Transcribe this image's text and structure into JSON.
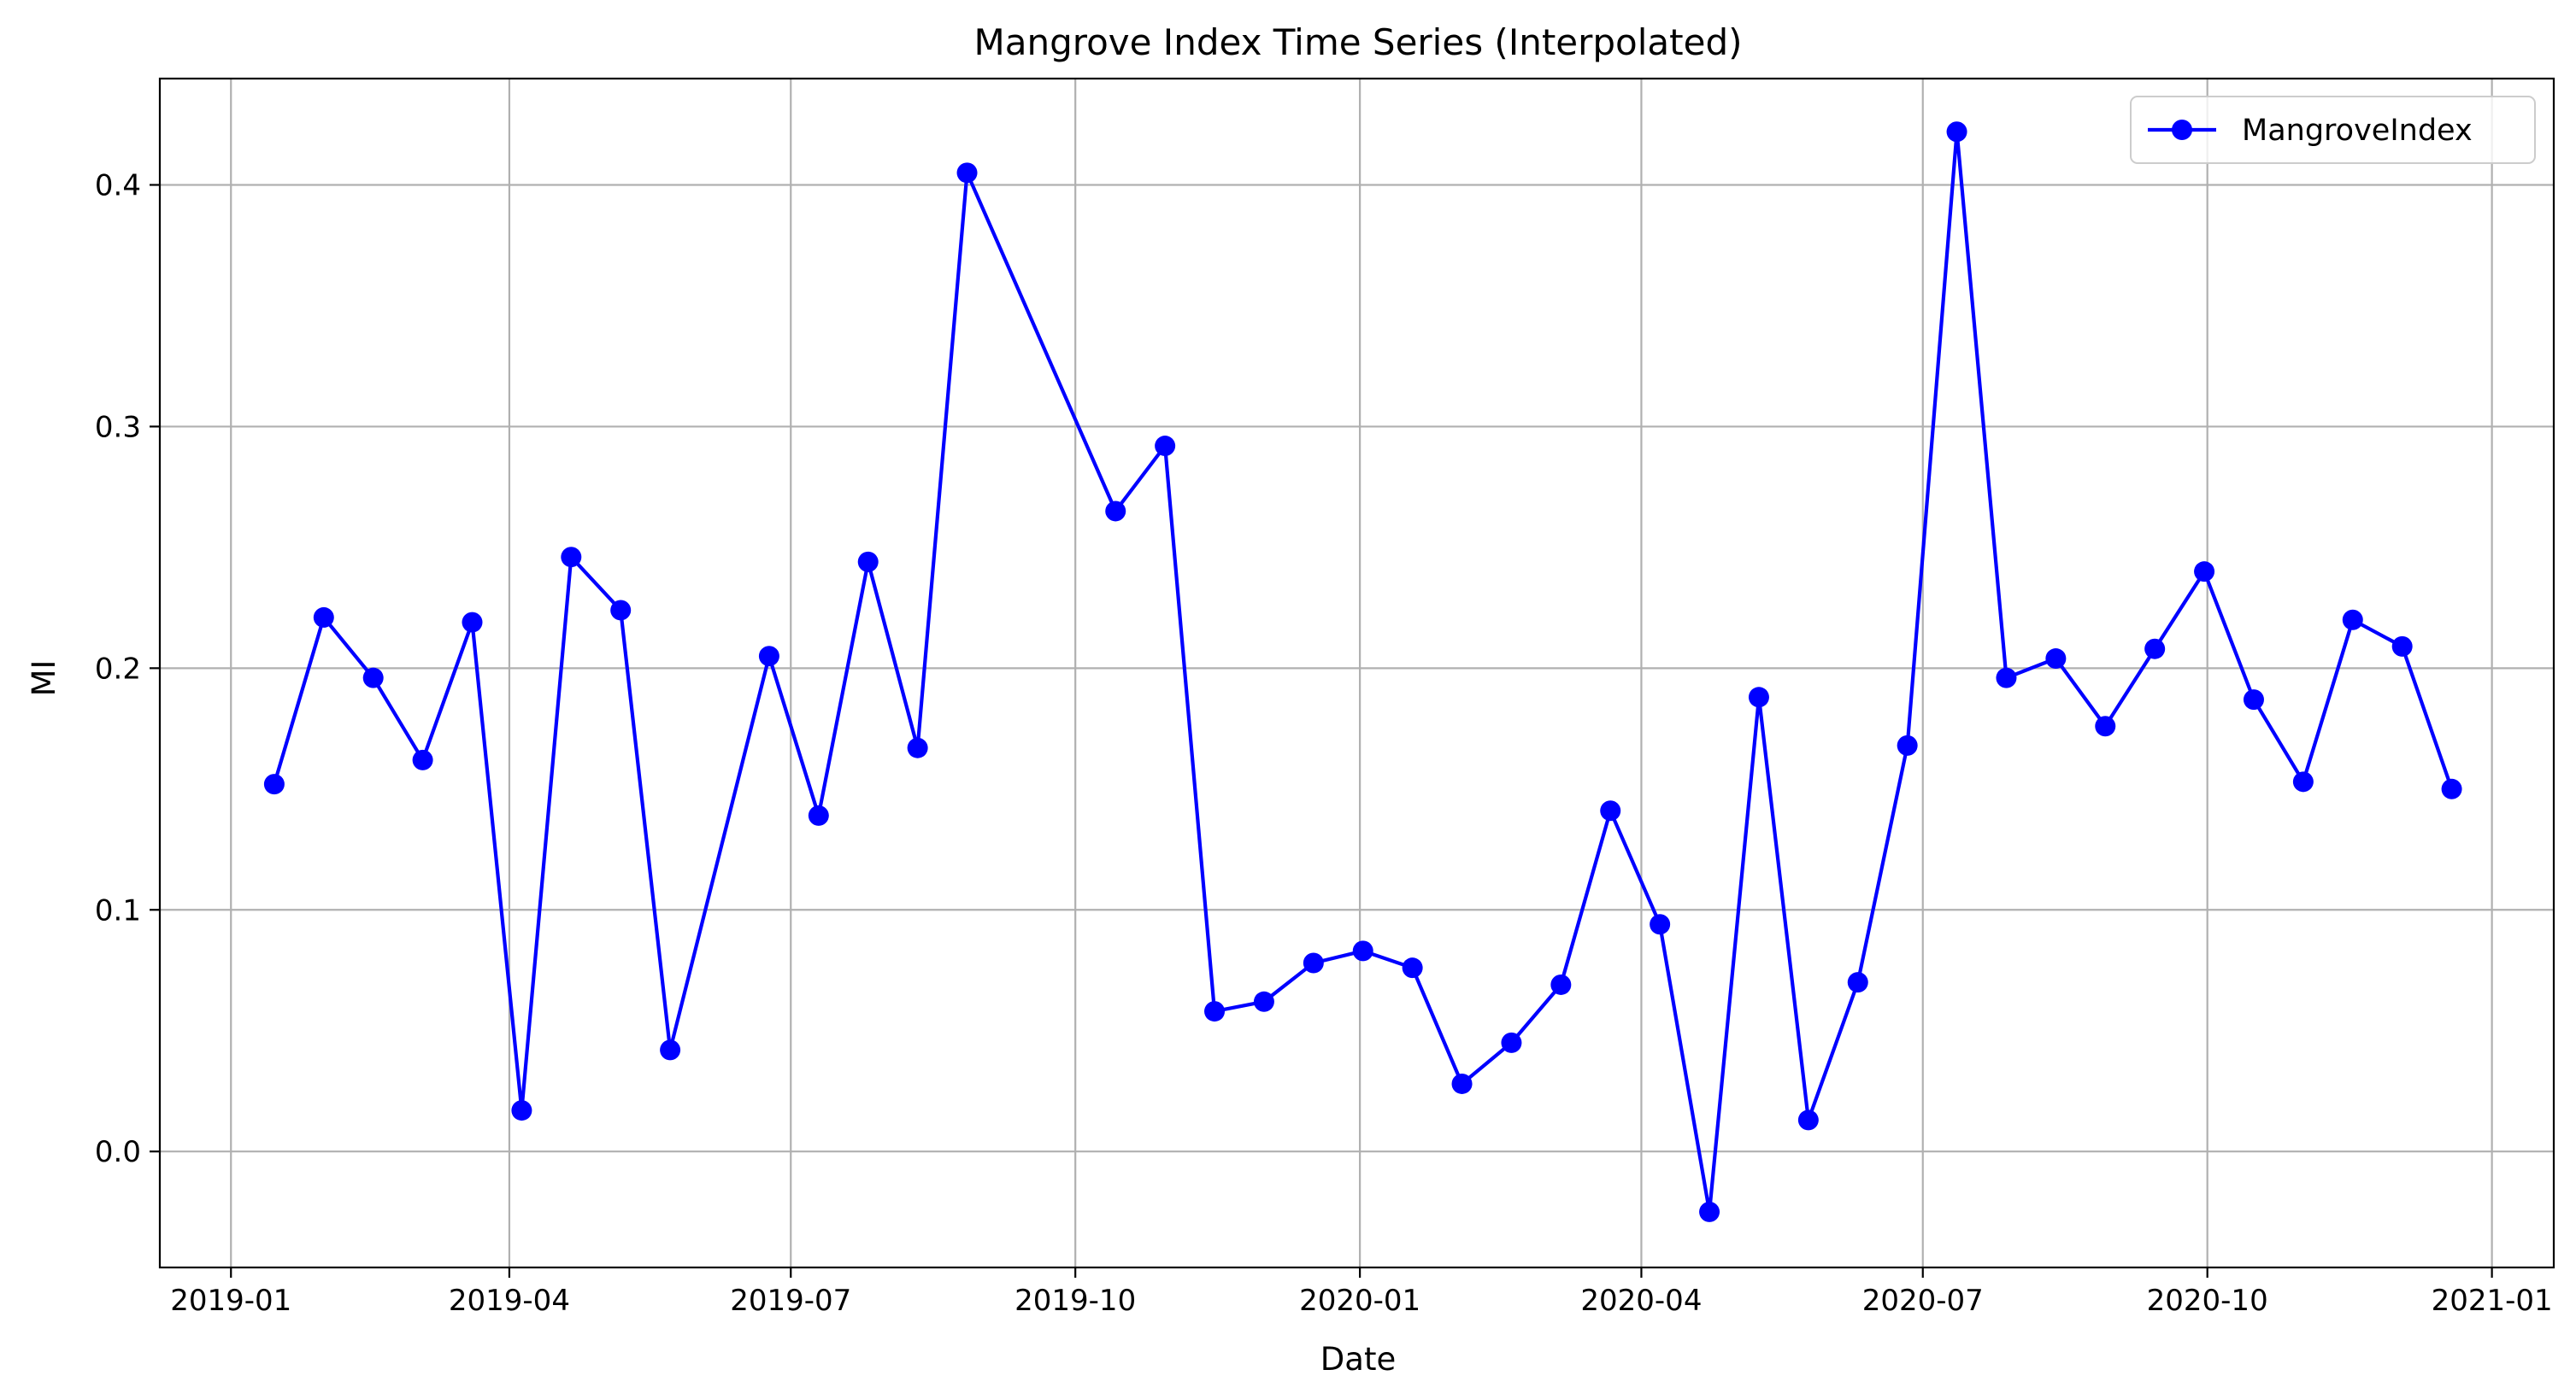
{
  "chart_data": {
    "type": "line",
    "title": "Mangrove Index Time Series (Interpolated)",
    "xlabel": "Date",
    "ylabel": "MI",
    "xlim": [
      "2018-12-09",
      "2021-01-21"
    ],
    "ylim": [
      -0.048,
      0.444
    ],
    "x_ticks": [
      {
        "date": "2019-01-01",
        "label": "2019-01"
      },
      {
        "date": "2019-04-01",
        "label": "2019-04"
      },
      {
        "date": "2019-07-01",
        "label": "2019-07"
      },
      {
        "date": "2019-10-01",
        "label": "2019-10"
      },
      {
        "date": "2020-01-01",
        "label": "2020-01"
      },
      {
        "date": "2020-04-01",
        "label": "2020-04"
      },
      {
        "date": "2020-07-01",
        "label": "2020-07"
      },
      {
        "date": "2020-10-01",
        "label": "2020-10"
      },
      {
        "date": "2021-01-01",
        "label": "2021-01"
      }
    ],
    "y_ticks": [
      {
        "value": 0.0,
        "label": "0.0"
      },
      {
        "value": 0.1,
        "label": "0.1"
      },
      {
        "value": 0.2,
        "label": "0.2"
      },
      {
        "value": 0.3,
        "label": "0.3"
      },
      {
        "value": 0.4,
        "label": "0.4"
      }
    ],
    "grid": true,
    "legend_position": "top-right",
    "series": [
      {
        "name": "MangroveIndex",
        "color": "#0000ff",
        "marker": "circle",
        "points": [
          {
            "x": "2019-01-15",
            "y": 0.152
          },
          {
            "x": "2019-01-31",
            "y": 0.221
          },
          {
            "x": "2019-02-16",
            "y": 0.196
          },
          {
            "x": "2019-03-04",
            "y": 0.162
          },
          {
            "x": "2019-03-20",
            "y": 0.219
          },
          {
            "x": "2019-04-05",
            "y": 0.017
          },
          {
            "x": "2019-04-21",
            "y": 0.246
          },
          {
            "x": "2019-05-07",
            "y": 0.224
          },
          {
            "x": "2019-05-23",
            "y": 0.042
          },
          {
            "x": "2019-06-24",
            "y": 0.205
          },
          {
            "x": "2019-07-10",
            "y": 0.139
          },
          {
            "x": "2019-07-26",
            "y": 0.244
          },
          {
            "x": "2019-08-11",
            "y": 0.167
          },
          {
            "x": "2019-08-27",
            "y": 0.405
          },
          {
            "x": "2019-10-14",
            "y": 0.265
          },
          {
            "x": "2019-10-30",
            "y": 0.292
          },
          {
            "x": "2019-11-15",
            "y": 0.058
          },
          {
            "x": "2019-12-01",
            "y": 0.062
          },
          {
            "x": "2019-12-17",
            "y": 0.078
          },
          {
            "x": "2020-01-02",
            "y": 0.083
          },
          {
            "x": "2020-01-18",
            "y": 0.076
          },
          {
            "x": "2020-02-03",
            "y": 0.028
          },
          {
            "x": "2020-02-19",
            "y": 0.045
          },
          {
            "x": "2020-03-06",
            "y": 0.069
          },
          {
            "x": "2020-03-22",
            "y": 0.141
          },
          {
            "x": "2020-04-07",
            "y": 0.094
          },
          {
            "x": "2020-04-23",
            "y": -0.025
          },
          {
            "x": "2020-05-09",
            "y": 0.188
          },
          {
            "x": "2020-05-25",
            "y": 0.013
          },
          {
            "x": "2020-06-10",
            "y": 0.07
          },
          {
            "x": "2020-06-26",
            "y": 0.168
          },
          {
            "x": "2020-07-12",
            "y": 0.422
          },
          {
            "x": "2020-07-28",
            "y": 0.196
          },
          {
            "x": "2020-08-13",
            "y": 0.204
          },
          {
            "x": "2020-08-29",
            "y": 0.176
          },
          {
            "x": "2020-09-14",
            "y": 0.208
          },
          {
            "x": "2020-09-30",
            "y": 0.24
          },
          {
            "x": "2020-10-16",
            "y": 0.187
          },
          {
            "x": "2020-11-01",
            "y": 0.153
          },
          {
            "x": "2020-11-17",
            "y": 0.22
          },
          {
            "x": "2020-12-03",
            "y": 0.209
          },
          {
            "x": "2020-12-19",
            "y": 0.15
          }
        ]
      }
    ]
  }
}
